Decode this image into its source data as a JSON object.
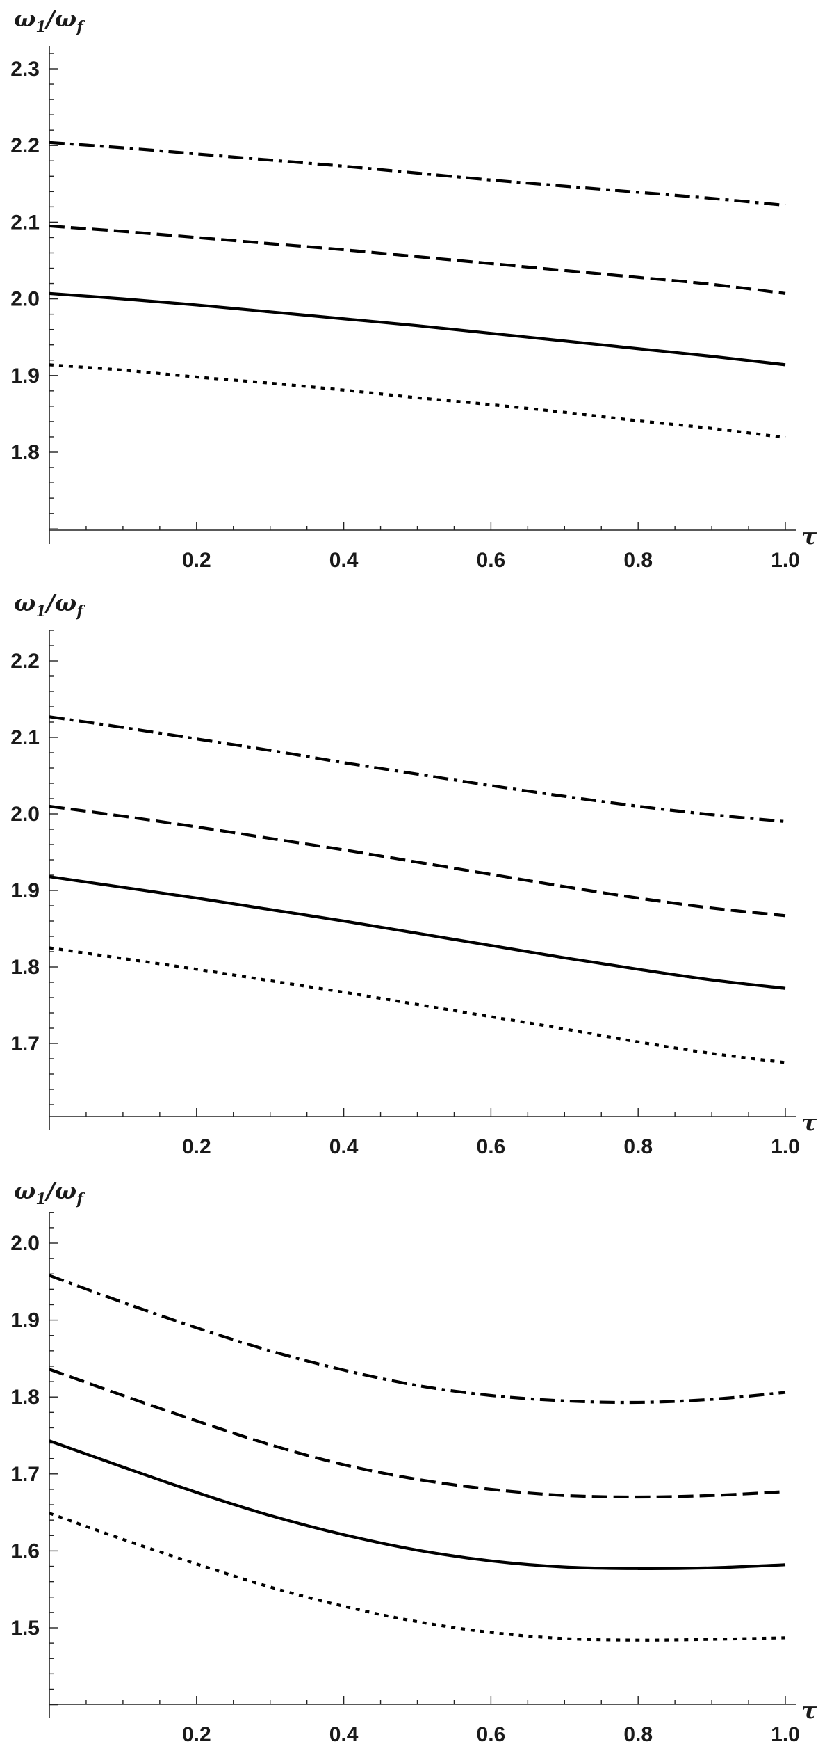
{
  "chart_data": [
    {
      "type": "line",
      "title": "",
      "xlabel": "τ",
      "ylabel": "ω1/ωf",
      "ylabel_main": "ω",
      "ylabel_sub": "1",
      "ylabel_slash": "/ω",
      "ylabel_sub2": "f",
      "xlim": [
        0,
        1.0
      ],
      "ylim": [
        1.7,
        2.33
      ],
      "xticks": [
        "0.2",
        "0.4",
        "0.6",
        "0.8",
        "1.0"
      ],
      "yticks": [
        "1.8",
        "1.9",
        "2.0",
        "2.1",
        "2.2",
        "2.3"
      ],
      "x": [
        0,
        0.1,
        0.2,
        0.3,
        0.4,
        0.5,
        0.6,
        0.7,
        0.8,
        0.9,
        1.0
      ],
      "grid": false,
      "series": [
        {
          "style": "dashdot",
          "values": [
            2.204,
            2.197,
            2.189,
            2.181,
            2.173,
            2.164,
            2.155,
            2.147,
            2.139,
            2.131,
            2.122
          ]
        },
        {
          "style": "dashed",
          "values": [
            2.095,
            2.088,
            2.08,
            2.072,
            2.064,
            2.055,
            2.046,
            2.037,
            2.028,
            2.019,
            2.007
          ]
        },
        {
          "style": "solid",
          "values": [
            2.007,
            2.0,
            1.992,
            1.983,
            1.974,
            1.965,
            1.955,
            1.945,
            1.935,
            1.925,
            1.914
          ]
        },
        {
          "style": "dotted",
          "values": [
            1.914,
            1.907,
            1.898,
            1.89,
            1.881,
            1.871,
            1.862,
            1.852,
            1.841,
            1.831,
            1.819
          ]
        }
      ]
    },
    {
      "type": "line",
      "title": "",
      "xlabel": "τ",
      "ylabel": "ω1/ωf",
      "ylabel_main": "ω",
      "ylabel_sub": "1",
      "ylabel_slash": "/ω",
      "ylabel_sub2": "f",
      "xlim": [
        0,
        1.0
      ],
      "ylim": [
        1.6,
        2.24
      ],
      "xticks": [
        "0.2",
        "0.4",
        "0.6",
        "0.8",
        "1.0"
      ],
      "yticks": [
        "1.7",
        "1.8",
        "1.9",
        "2.0",
        "2.1",
        "2.2"
      ],
      "x": [
        0,
        0.1,
        0.2,
        0.3,
        0.4,
        0.5,
        0.6,
        0.7,
        0.8,
        0.9,
        1.0
      ],
      "grid": false,
      "series": [
        {
          "style": "dashdot",
          "values": [
            2.127,
            2.113,
            2.098,
            2.083,
            2.067,
            2.052,
            2.037,
            2.023,
            2.01,
            1.999,
            1.99
          ]
        },
        {
          "style": "dashed",
          "values": [
            2.01,
            1.997,
            1.983,
            1.968,
            1.953,
            1.937,
            1.921,
            1.905,
            1.89,
            1.877,
            1.867
          ]
        },
        {
          "style": "solid",
          "values": [
            1.918,
            1.904,
            1.89,
            1.875,
            1.86,
            1.844,
            1.828,
            1.812,
            1.797,
            1.783,
            1.772
          ]
        },
        {
          "style": "dotted",
          "values": [
            1.825,
            1.811,
            1.797,
            1.782,
            1.767,
            1.751,
            1.735,
            1.719,
            1.702,
            1.687,
            1.675
          ]
        }
      ]
    },
    {
      "type": "line",
      "title": "",
      "xlabel": "τ",
      "ylabel": "ω1/ωf",
      "ylabel_main": "ω",
      "ylabel_sub": "1",
      "ylabel_slash": "/ω",
      "ylabel_sub2": "f",
      "xlim": [
        0,
        1.0
      ],
      "ylim": [
        1.4,
        2.04
      ],
      "xticks": [
        "0.2",
        "0.4",
        "0.6",
        "0.8",
        "1.0"
      ],
      "yticks": [
        "1.5",
        "1.6",
        "1.7",
        "1.8",
        "1.9",
        "2.0"
      ],
      "x": [
        0,
        0.1,
        0.2,
        0.3,
        0.4,
        0.5,
        0.6,
        0.7,
        0.8,
        0.9,
        1.0
      ],
      "grid": false,
      "series": [
        {
          "style": "dashdot",
          "values": [
            1.958,
            1.923,
            1.89,
            1.86,
            1.835,
            1.815,
            1.802,
            1.795,
            1.793,
            1.797,
            1.806
          ]
        },
        {
          "style": "dashed",
          "values": [
            1.836,
            1.802,
            1.769,
            1.738,
            1.712,
            1.693,
            1.68,
            1.672,
            1.67,
            1.672,
            1.677
          ]
        },
        {
          "style": "solid",
          "values": [
            1.743,
            1.709,
            1.676,
            1.646,
            1.621,
            1.601,
            1.587,
            1.579,
            1.577,
            1.578,
            1.582
          ]
        },
        {
          "style": "dotted",
          "values": [
            1.649,
            1.615,
            1.583,
            1.553,
            1.528,
            1.508,
            1.494,
            1.486,
            1.484,
            1.485,
            1.487
          ]
        }
      ]
    }
  ]
}
